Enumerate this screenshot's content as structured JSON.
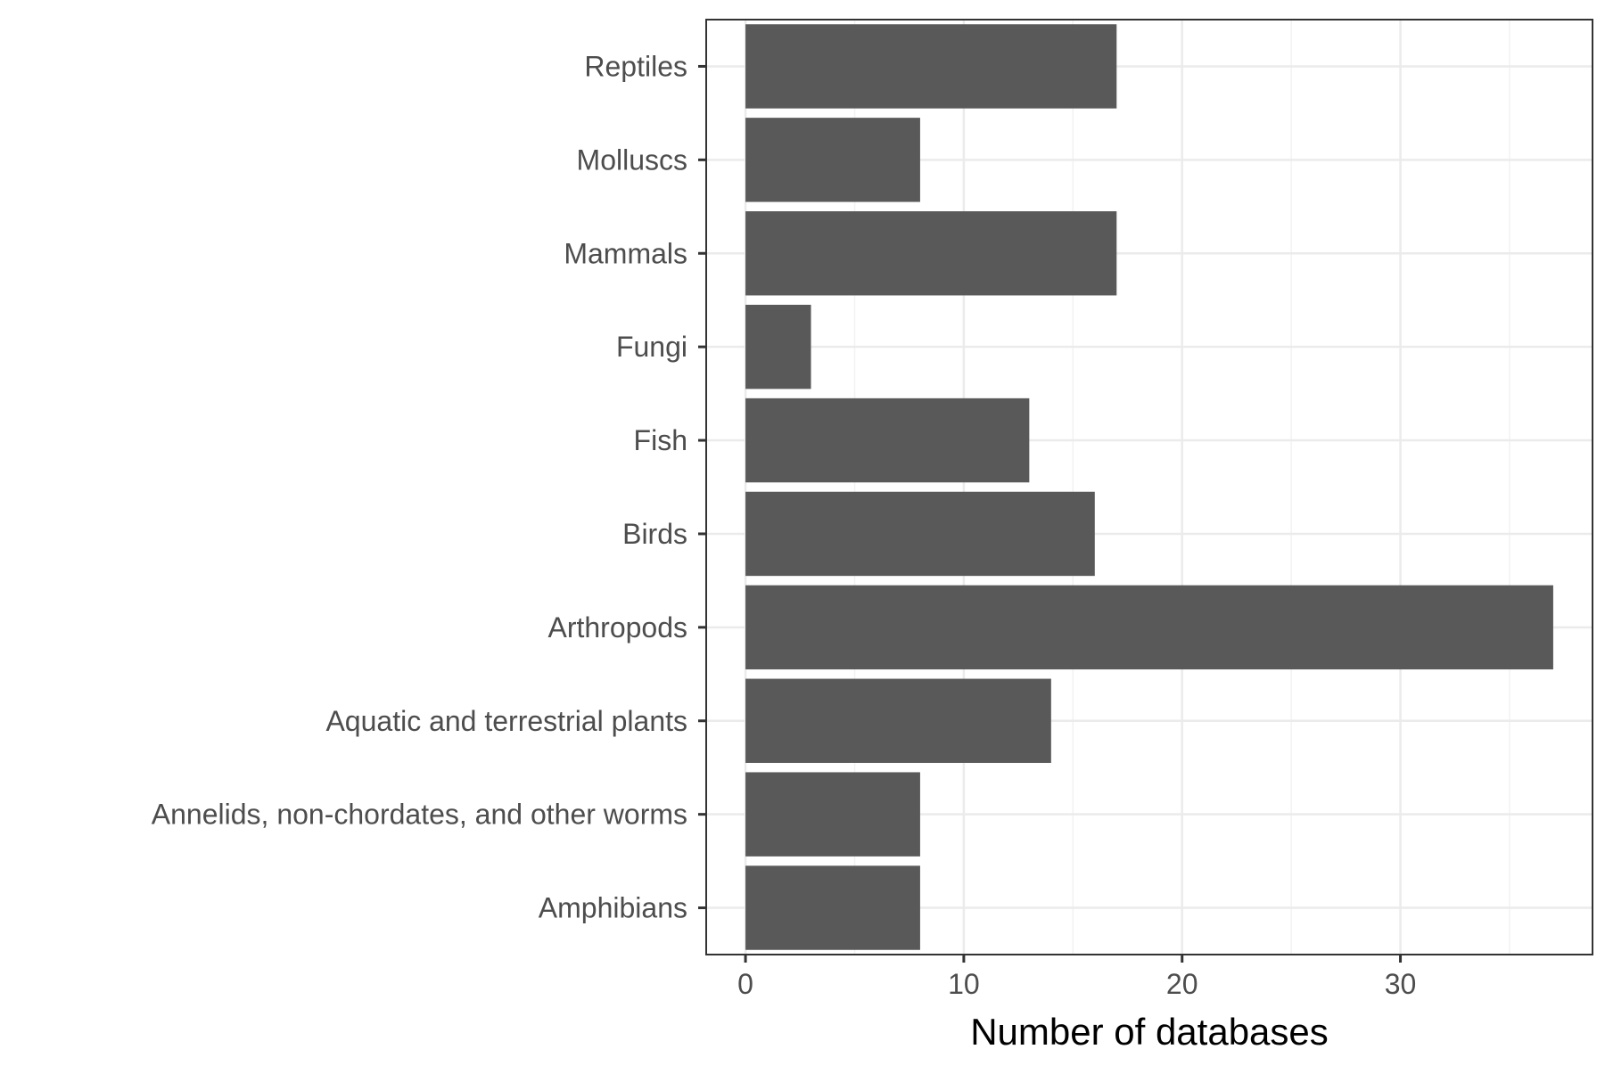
{
  "chart_data": {
    "type": "bar",
    "orientation": "horizontal",
    "categories": [
      "Reptiles",
      "Molluscs",
      "Mammals",
      "Fungi",
      "Fish",
      "Birds",
      "Arthropods",
      "Aquatic and terrestrial plants",
      "Annelids, non-chordates, and other worms",
      "Amphibians"
    ],
    "values": [
      17,
      8,
      17,
      3,
      13,
      16,
      37,
      14,
      8,
      8
    ],
    "xlabel": "Number of databases",
    "ylabel": "",
    "xlim": [
      -1.8,
      38.8
    ],
    "xticks": [
      0,
      10,
      20,
      30
    ],
    "grid": true,
    "colors": {
      "bar": "#595959",
      "grid_major": "#ebebeb",
      "grid_minor": "#f2f2f2",
      "panel_border": "#333333",
      "background": "#ffffff"
    }
  }
}
